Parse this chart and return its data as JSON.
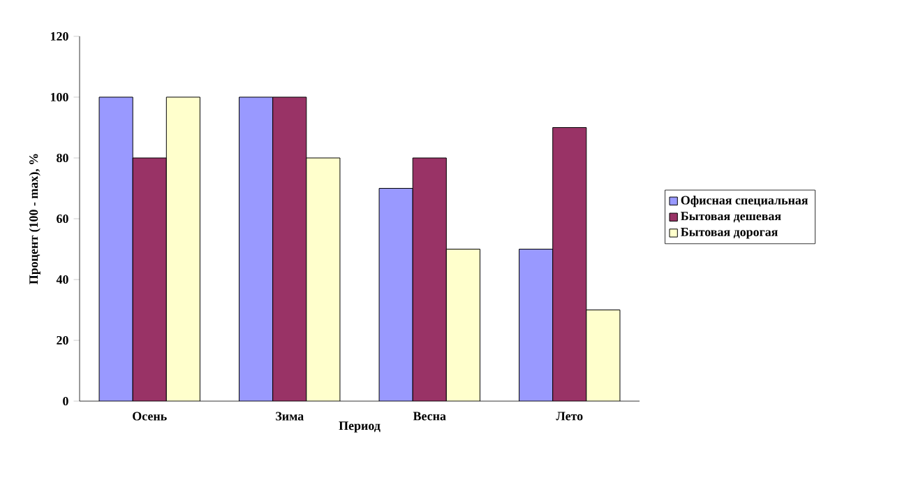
{
  "chart_data": {
    "type": "bar",
    "xlabel": "Период",
    "ylabel": "Процент (100 - max), %",
    "categories": [
      "Осень",
      "Зима",
      "Весна",
      "Лето"
    ],
    "series": [
      {
        "name": "Офисная специальная",
        "color": "#9999ff",
        "values": [
          100,
          100,
          70,
          50
        ]
      },
      {
        "name": "Бытовая дешевая",
        "color": "#993366",
        "values": [
          80,
          100,
          80,
          90
        ]
      },
      {
        "name": "Бытовая дорогая",
        "color": "#ffffcc",
        "values": [
          100,
          80,
          50,
          30
        ]
      }
    ],
    "ylim": [
      0,
      120
    ],
    "yticks": [
      0,
      20,
      40,
      60,
      80,
      100,
      120
    ],
    "grid": false,
    "legend": "right"
  }
}
